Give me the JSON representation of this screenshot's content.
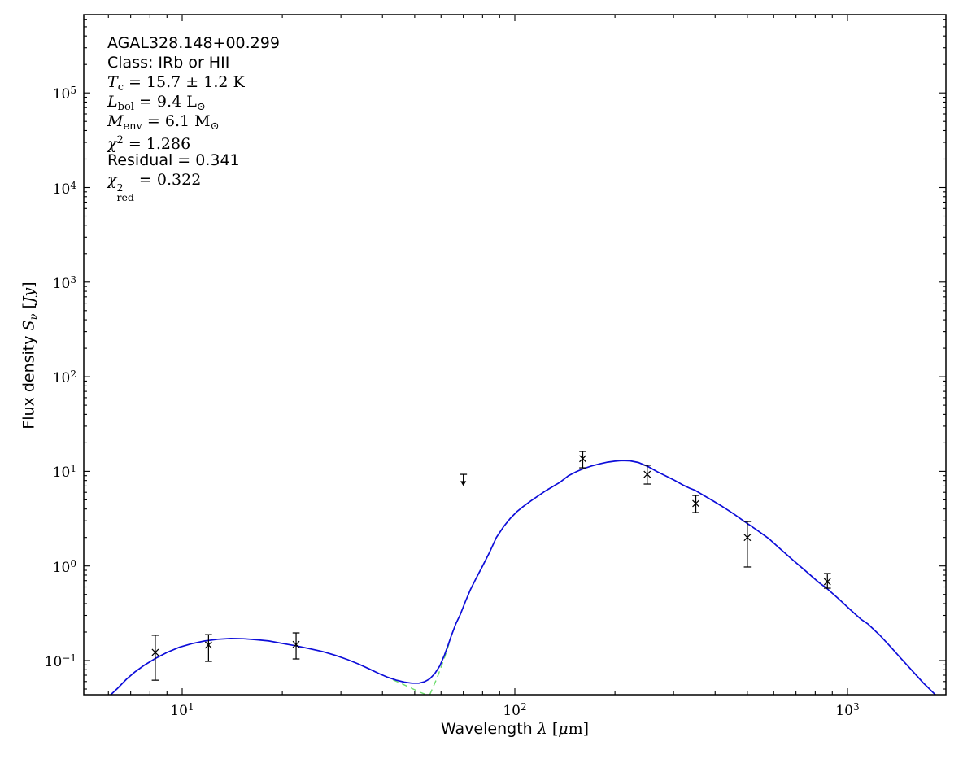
{
  "annotation": {
    "source": "AGAL328.148+00.299",
    "class_line": "Class: IRb or HII",
    "temp": {
      "sym": "T",
      "sub": "c",
      "rest": " = 15.7 ± 1.2 K"
    },
    "lbol": {
      "sym": "L",
      "sub": "bol",
      "rest": " = 9.4 L",
      "sun": "⊙"
    },
    "menv": {
      "sym": "M",
      "sub": "env",
      "rest": " = 6.1 M",
      "sun": "⊙"
    },
    "chi2": {
      "sym": "χ",
      "sup": "2",
      "rest": " = 1.286"
    },
    "residual": "Residual = 0.341",
    "chired": {
      "sym": "χ",
      "sup": "2",
      "sub": "red",
      "rest": " = 0.322"
    }
  },
  "axes": {
    "x_label": {
      "pre": "Wavelength ",
      "sym": "λ",
      "open": " [",
      "mu": "μ",
      "close": "m]"
    },
    "y_label": {
      "pre": "Flux density ",
      "sym": "S",
      "sub": "ν",
      "open": " [",
      "unit": "Jy",
      "close": "]"
    },
    "x_ticks": [
      {
        "base": "10",
        "exp": "1",
        "value": 10
      },
      {
        "base": "10",
        "exp": "2",
        "value": 100
      },
      {
        "base": "10",
        "exp": "3",
        "value": 1000
      }
    ],
    "y_ticks": [
      {
        "base": "10",
        "exp": "5",
        "value": 100000
      },
      {
        "base": "10",
        "exp": "4",
        "value": 10000
      },
      {
        "base": "10",
        "exp": "3",
        "value": 1000
      },
      {
        "base": "10",
        "exp": "2",
        "value": 100
      },
      {
        "base": "10",
        "exp": "1",
        "value": 10
      },
      {
        "base": "10",
        "exp": "0",
        "value": 1
      },
      {
        "base": "10",
        "exp": "−1",
        "value": 0.1
      }
    ]
  },
  "chart_data": {
    "type": "line",
    "title": "",
    "xlabel": "Wavelength λ [μm]",
    "ylabel": "Flux density S_ν [Jy]",
    "x_scale": "log",
    "y_scale": "log",
    "xlim": [
      5.06,
      1977
    ],
    "ylim": [
      0.0435,
      670000
    ],
    "grid": false,
    "legend": "none",
    "series": [
      {
        "name": "model_total_sed",
        "color": "#0d0dd9",
        "line": "solid",
        "points": [
          [
            6.1,
            0.0435
          ],
          [
            6.4,
            0.051
          ],
          [
            6.8,
            0.0635
          ],
          [
            7.2,
            0.0755
          ],
          [
            7.7,
            0.0895
          ],
          [
            8.3,
            0.105
          ],
          [
            9.0,
            0.122
          ],
          [
            9.8,
            0.138
          ],
          [
            10.7,
            0.151
          ],
          [
            11.7,
            0.161
          ],
          [
            12.8,
            0.168
          ],
          [
            14.0,
            0.171
          ],
          [
            15.3,
            0.17
          ],
          [
            16.7,
            0.166
          ],
          [
            18.2,
            0.161
          ],
          [
            20.0,
            0.152
          ],
          [
            22.0,
            0.143
          ],
          [
            24.0,
            0.134
          ],
          [
            26.5,
            0.124
          ],
          [
            29.0,
            0.113
          ],
          [
            31.5,
            0.102
          ],
          [
            34.0,
            0.0915
          ],
          [
            36.5,
            0.0815
          ],
          [
            39.0,
            0.073
          ],
          [
            41.5,
            0.0665
          ],
          [
            44.0,
            0.062
          ],
          [
            46.5,
            0.0592
          ],
          [
            49.0,
            0.0577
          ],
          [
            51.5,
            0.0577
          ],
          [
            53.5,
            0.0596
          ],
          [
            55.5,
            0.064
          ],
          [
            57.5,
            0.073
          ],
          [
            59.5,
            0.088
          ],
          [
            61.5,
            0.115
          ],
          [
            63.0,
            0.145
          ],
          [
            64.5,
            0.185
          ],
          [
            66.5,
            0.245
          ],
          [
            68.5,
            0.305
          ],
          [
            71.0,
            0.42
          ],
          [
            73.5,
            0.56
          ],
          [
            76.5,
            0.74
          ],
          [
            80.0,
            1.0
          ],
          [
            84.0,
            1.4
          ],
          [
            88.0,
            2.0
          ],
          [
            92.5,
            2.6
          ],
          [
            97.0,
            3.2
          ],
          [
            101.5,
            3.75
          ],
          [
            106.0,
            4.25
          ],
          [
            112.0,
            4.9
          ],
          [
            118.0,
            5.55
          ],
          [
            124.0,
            6.25
          ],
          [
            130.0,
            6.9
          ],
          [
            137.0,
            7.7
          ],
          [
            145.0,
            9.0
          ],
          [
            153.0,
            9.9
          ],
          [
            161.0,
            10.7
          ],
          [
            170.0,
            11.4
          ],
          [
            180.0,
            12.0
          ],
          [
            190.0,
            12.5
          ],
          [
            200.0,
            12.8
          ],
          [
            211.0,
            13.0
          ],
          [
            222.0,
            12.9
          ],
          [
            235.0,
            12.4
          ],
          [
            252.0,
            11.2
          ],
          [
            268.0,
            9.9
          ],
          [
            285.0,
            8.9
          ],
          [
            303.0,
            8.0
          ],
          [
            322.0,
            7.1
          ],
          [
            335.0,
            6.65
          ],
          [
            348.0,
            6.3
          ],
          [
            370.0,
            5.55
          ],
          [
            395.0,
            4.85
          ],
          [
            425.0,
            4.15
          ],
          [
            455.0,
            3.55
          ],
          [
            490.0,
            2.95
          ],
          [
            532.0,
            2.42
          ],
          [
            580.0,
            1.95
          ],
          [
            630.0,
            1.5
          ],
          [
            690.0,
            1.13
          ],
          [
            750.0,
            0.88
          ],
          [
            820.0,
            0.67
          ],
          [
            864.0,
            0.585
          ],
          [
            940.0,
            0.45
          ],
          [
            1020.0,
            0.345
          ],
          [
            1100.0,
            0.272
          ],
          [
            1151.0,
            0.244
          ],
          [
            1250.0,
            0.186
          ],
          [
            1350.0,
            0.139
          ],
          [
            1442.0,
            0.107
          ],
          [
            1550.0,
            0.081
          ],
          [
            1690.0,
            0.058
          ],
          [
            1837.0,
            0.0435
          ]
        ]
      },
      {
        "name": "component_hot",
        "color": "#6ddc6d",
        "line": "dashed",
        "points": [
          [
            40.5,
            0.069
          ],
          [
            43.0,
            0.0625
          ],
          [
            46.0,
            0.0563
          ],
          [
            49.0,
            0.0508
          ],
          [
            52.0,
            0.0461
          ],
          [
            54.2,
            0.0435
          ]
        ]
      },
      {
        "name": "component_cold",
        "color": "#6ddc6d",
        "line": "dashed",
        "points": [
          [
            55.5,
            0.0435
          ],
          [
            57.0,
            0.054
          ],
          [
            58.5,
            0.067
          ],
          [
            60.0,
            0.085
          ],
          [
            61.5,
            0.108
          ],
          [
            63.0,
            0.14
          ],
          [
            64.0,
            0.165
          ]
        ]
      }
    ],
    "photometry": {
      "name": "flux_measurements",
      "marker": "x",
      "color": "#000000",
      "points": [
        {
          "wavelength_um": 8.3,
          "flux_jy": 0.122,
          "err_lo": 0.062,
          "err_hi": 0.185
        },
        {
          "wavelength_um": 12.0,
          "flux_jy": 0.146,
          "err_lo": 0.098,
          "err_hi": 0.188
        },
        {
          "wavelength_um": 22.0,
          "flux_jy": 0.148,
          "err_lo": 0.104,
          "err_hi": 0.196
        },
        {
          "wavelength_um": 160.0,
          "flux_jy": 13.6,
          "err_lo": 10.9,
          "err_hi": 16.2
        },
        {
          "wavelength_um": 250.0,
          "flux_jy": 9.3,
          "err_lo": 7.34,
          "err_hi": 11.6
        },
        {
          "wavelength_um": 350.0,
          "flux_jy": 4.57,
          "err_lo": 3.67,
          "err_hi": 5.56
        },
        {
          "wavelength_um": 500.0,
          "flux_jy": 2.0,
          "err_lo": 0.975,
          "err_hi": 2.95
        },
        {
          "wavelength_um": 870.0,
          "flux_jy": 0.682,
          "err_lo": 0.582,
          "err_hi": 0.832
        }
      ]
    },
    "upper_limit": {
      "wavelength_um": 70.0,
      "flux_jy": 9.3,
      "arrow_to_jy": 7.0
    }
  }
}
